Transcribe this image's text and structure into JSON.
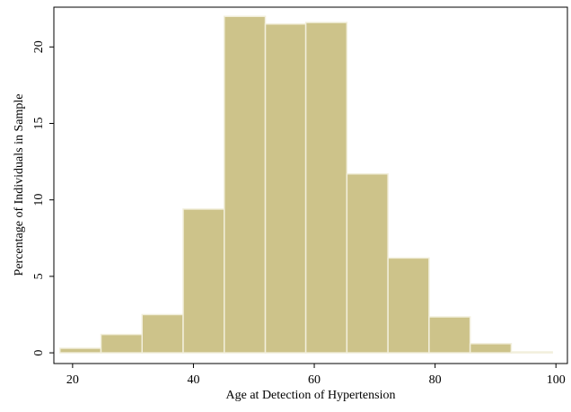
{
  "chart_data": {
    "type": "histogram",
    "xlabel": "Age at Detection of Hypertension",
    "ylabel": "Percentage of Individuals in Sample",
    "bins": [
      17.9,
      24.7,
      31.5,
      38.3,
      45.1,
      51.9,
      58.6,
      65.4,
      72.2,
      79.0,
      85.8,
      92.6,
      99.4
    ],
    "values": [
      0.3,
      1.2,
      2.5,
      9.4,
      22.0,
      21.5,
      21.6,
      11.7,
      6.2,
      2.35,
      0.6,
      0.06
    ],
    "color": "#cdc38a",
    "xlim": [
      16.9,
      101.9
    ],
    "ylim": [
      -0.7,
      22.6
    ],
    "xticks": [
      20,
      40,
      60,
      80,
      100
    ],
    "yticks": [
      0,
      5,
      10,
      15,
      20
    ]
  }
}
